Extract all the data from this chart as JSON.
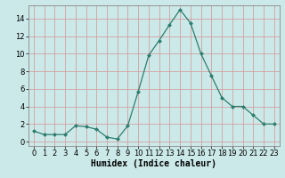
{
  "x": [
    0,
    1,
    2,
    3,
    4,
    5,
    6,
    7,
    8,
    9,
    10,
    11,
    12,
    13,
    14,
    15,
    16,
    17,
    18,
    19,
    20,
    21,
    22,
    23
  ],
  "y": [
    1.2,
    0.8,
    0.8,
    0.8,
    1.8,
    1.7,
    1.4,
    0.5,
    0.3,
    1.8,
    5.7,
    9.8,
    11.5,
    13.3,
    15.0,
    13.5,
    10.0,
    7.5,
    5.0,
    4.0,
    4.0,
    3.0,
    2.0,
    2.0
  ],
  "line_color": "#2d7d6e",
  "marker": "D",
  "marker_size": 2.0,
  "bg_color": "#cce9e9",
  "grid_color": "#d4a0a0",
  "xlabel": "Humidex (Indice chaleur)",
  "xlabel_fontsize": 7,
  "ylim": [
    -0.5,
    15.5
  ],
  "xlim": [
    -0.5,
    23.5
  ],
  "yticks": [
    0,
    2,
    4,
    6,
    8,
    10,
    12,
    14
  ],
  "xticks": [
    0,
    1,
    2,
    3,
    4,
    5,
    6,
    7,
    8,
    9,
    10,
    11,
    12,
    13,
    14,
    15,
    16,
    17,
    18,
    19,
    20,
    21,
    22,
    23
  ],
  "tick_fontsize": 6,
  "spine_color": "#888888"
}
